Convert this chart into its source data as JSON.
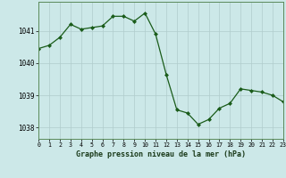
{
  "x": [
    0,
    1,
    2,
    3,
    4,
    5,
    6,
    7,
    8,
    9,
    10,
    11,
    12,
    13,
    14,
    15,
    16,
    17,
    18,
    19,
    20,
    21,
    22,
    23
  ],
  "y": [
    1040.45,
    1040.55,
    1040.8,
    1041.2,
    1041.05,
    1041.1,
    1041.15,
    1041.45,
    1041.45,
    1041.3,
    1041.55,
    1040.9,
    1039.65,
    1038.55,
    1038.45,
    1038.1,
    1038.25,
    1038.6,
    1038.75,
    1039.2,
    1039.15,
    1039.1,
    1039.0,
    1038.8
  ],
  "line_color": "#1a5c1a",
  "marker_color": "#1a5c1a",
  "bg_color": "#cce8e8",
  "grid_color": "#b0cccc",
  "ylabel_ticks": [
    1038,
    1039,
    1040,
    1041
  ],
  "xlabel_ticks": [
    0,
    1,
    2,
    3,
    4,
    5,
    6,
    7,
    8,
    9,
    10,
    11,
    12,
    13,
    14,
    15,
    16,
    17,
    18,
    19,
    20,
    21,
    22,
    23
  ],
  "xlabel": "Graphe pression niveau de la mer (hPa)",
  "ylim": [
    1037.65,
    1041.9
  ],
  "xlim": [
    0,
    23
  ],
  "title": ""
}
